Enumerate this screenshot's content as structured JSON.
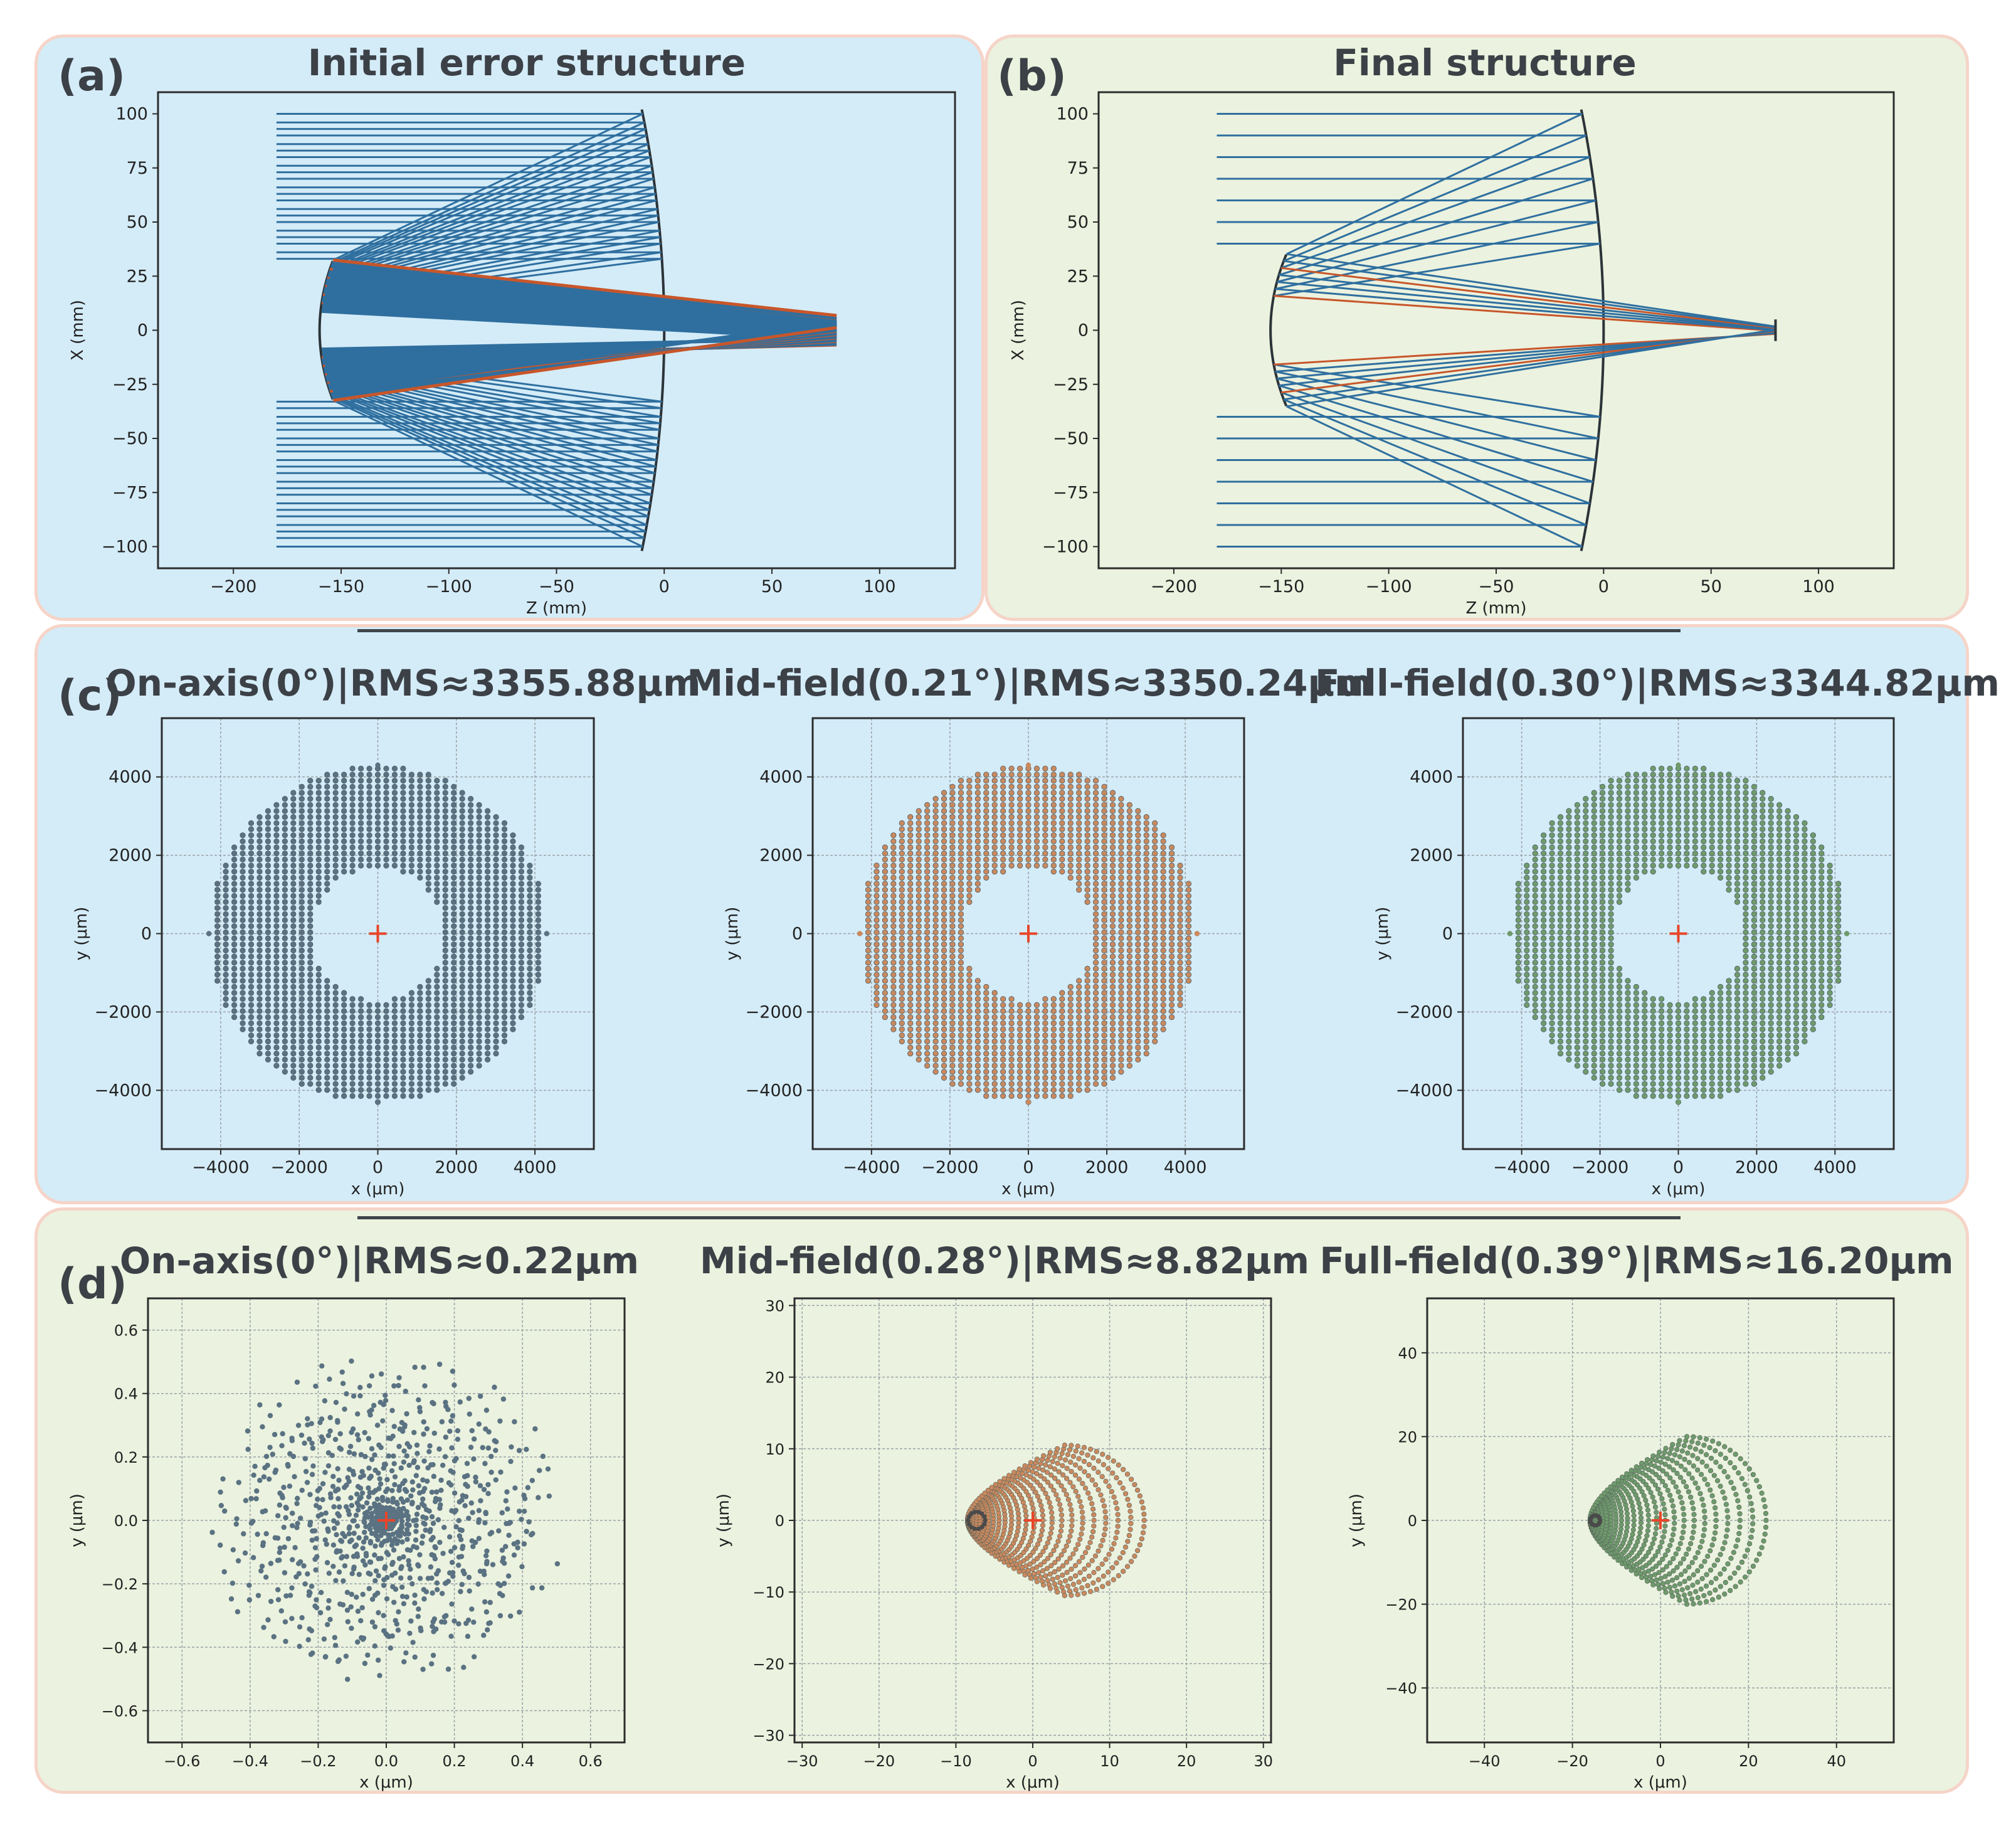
{
  "panels": {
    "a": {
      "label": "(a)",
      "title": "Initial error structure"
    },
    "b": {
      "label": "(b)",
      "title": "Final structure"
    },
    "c": {
      "label": "(c)"
    },
    "d": {
      "label": "(d)"
    }
  },
  "colors": {
    "blue_panel": "#d4ecf8",
    "green_panel": "#ebf2df",
    "border": "#f6d4c8",
    "ray_blue": "#2f6f9f",
    "ray_orange": "#c8562a",
    "dot_slate": "#5a7282",
    "dot_orange": "#c9895e",
    "dot_green": "#6f9a6c",
    "chief_marker": "#e8452a"
  },
  "chart_data": [
    {
      "id": "a",
      "type": "line",
      "title": "Initial error structure",
      "xlabel": "Z (mm)",
      "ylabel": "X (mm)",
      "xlim": [
        -235,
        135
      ],
      "ylim": [
        -110,
        110
      ],
      "xticks": [
        "−200",
        "−150",
        "−100",
        "−50",
        "0",
        "50",
        "100"
      ],
      "yticks": [
        "100",
        "75",
        "50",
        "25",
        "0",
        "−25",
        "−50",
        "−75",
        "−100"
      ],
      "primary_mirror": {
        "z_vertex": 0,
        "z_edge": -10,
        "aperture": 100
      },
      "secondary_mirror": {
        "z_vertex": -160,
        "aperture": 32
      },
      "ray_start_z": -180,
      "focus_z": 80,
      "focus_spread": 8,
      "ray_heights": [
        33,
        36,
        40,
        43,
        46,
        50,
        53,
        56,
        60,
        63,
        66,
        70,
        73,
        76,
        80,
        83,
        86,
        90,
        93,
        96,
        100
      ]
    },
    {
      "id": "b",
      "type": "line",
      "title": "Final structure",
      "xlabel": "Z (mm)",
      "ylabel": "X (mm)",
      "xlim": [
        -235,
        135
      ],
      "ylim": [
        -110,
        110
      ],
      "xticks": [
        "−200",
        "−150",
        "−100",
        "−50",
        "0",
        "50",
        "100"
      ],
      "yticks": [
        "100",
        "75",
        "50",
        "25",
        "0",
        "−25",
        "−50",
        "−75",
        "−100"
      ],
      "primary_mirror": {
        "z_vertex": 0,
        "z_edge": -10,
        "aperture": 100
      },
      "secondary_mirror": {
        "z_vertex": -155,
        "aperture": 35
      },
      "ray_start_z": -180,
      "focus_z": 80,
      "focus_spread": 2,
      "ray_heights": [
        40,
        50,
        60,
        70,
        80,
        90,
        100
      ]
    },
    {
      "id": "c1",
      "type": "scatter",
      "title": "On-axis(0°)|RMS≈3355.88μm",
      "xlabel": "x (μm)",
      "ylabel": "y (μm)",
      "xlim": [
        -5500,
        5500
      ],
      "ylim": [
        -5500,
        5500
      ],
      "xticks": [
        "−4000",
        "−2000",
        "0",
        "2000",
        "4000"
      ],
      "yticks": [
        "4000",
        "2000",
        "0",
        "−2000",
        "−4000"
      ],
      "pattern": "annulus",
      "outer_radius": 4300,
      "inner_radius": 1700,
      "color": "#5a7282"
    },
    {
      "id": "c2",
      "type": "scatter",
      "title": "Mid-field(0.21°)|RMS≈3350.24μm",
      "xlabel": "x (μm)",
      "ylabel": "y (μm)",
      "xlim": [
        -5500,
        5500
      ],
      "ylim": [
        -5500,
        5500
      ],
      "xticks": [
        "−4000",
        "−2000",
        "0",
        "2000",
        "4000"
      ],
      "yticks": [
        "4000",
        "2000",
        "0",
        "−2000",
        "−4000"
      ],
      "pattern": "annulus",
      "outer_radius": 4300,
      "inner_radius": 1700,
      "color": "#c9895e"
    },
    {
      "id": "c3",
      "type": "scatter",
      "title": "Full-field(0.30°)|RMS≈3344.82μm",
      "xlabel": "x (μm)",
      "ylabel": "y (μm)",
      "xlim": [
        -5500,
        5500
      ],
      "ylim": [
        -5500,
        5500
      ],
      "xticks": [
        "−4000",
        "−2000",
        "0",
        "2000",
        "4000"
      ],
      "yticks": [
        "4000",
        "2000",
        "0",
        "−2000",
        "−4000"
      ],
      "pattern": "annulus",
      "outer_radius": 4300,
      "inner_radius": 1700,
      "color": "#6f9a6c"
    },
    {
      "id": "d1",
      "type": "scatter",
      "title": "On-axis(0°)|RMS≈0.22μm",
      "xlabel": "x (μm)",
      "ylabel": "y (μm)",
      "xlim": [
        -0.7,
        0.7
      ],
      "ylim": [
        -0.7,
        0.7
      ],
      "xticks": [
        "−0.6",
        "−0.4",
        "−0.2",
        "0.0",
        "0.2",
        "0.4",
        "0.6"
      ],
      "yticks": [
        "0.6",
        "0.4",
        "0.2",
        "0.0",
        "−0.2",
        "−0.4",
        "−0.6"
      ],
      "pattern": "spherical",
      "outer_radius": 0.46,
      "color": "#5a7282"
    },
    {
      "id": "d2",
      "type": "scatter",
      "title": "Mid-field(0.28°)|RMS≈8.82μm",
      "xlabel": "x (μm)",
      "ylabel": "y (μm)",
      "xlim": [
        -31,
        31
      ],
      "ylim": [
        -31,
        31
      ],
      "xticks": [
        "−30",
        "−20",
        "−10",
        "0",
        "10",
        "20",
        "30"
      ],
      "yticks": [
        "30",
        "20",
        "10",
        "0",
        "−10",
        "−20",
        "−30"
      ],
      "pattern": "coma",
      "vertex_x": -8.5,
      "scale_x": 23,
      "scale_y": 10.5,
      "color": "#c9895e"
    },
    {
      "id": "d3",
      "type": "scatter",
      "title": "Full-field(0.39°)|RMS≈16.20μm",
      "xlabel": "x (μm)",
      "ylabel": "y (μm)",
      "xlim": [
        -53,
        53
      ],
      "ylim": [
        -53,
        53
      ],
      "xticks": [
        "−40",
        "−20",
        "0",
        "20",
        "40"
      ],
      "yticks": [
        "40",
        "20",
        "0",
        "−20",
        "−40"
      ],
      "pattern": "coma",
      "vertex_x": -16,
      "scale_x": 40,
      "scale_y": 20,
      "color": "#6f9a6c"
    }
  ]
}
